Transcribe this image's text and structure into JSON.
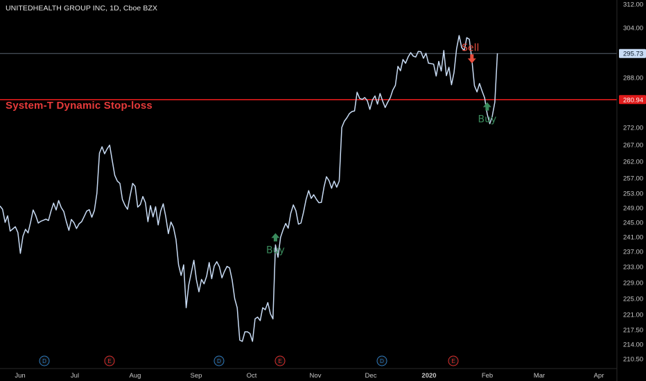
{
  "header": {
    "title": "UNITEDHEALTH GROUP INC, 1D, Cboe BZX"
  },
  "indicator": {
    "label": "System-T Dynamic Stop-loss",
    "stop_level": 280.94,
    "stop_label": "280.94",
    "stop_color": "#e01b1b"
  },
  "colors": {
    "background": "#000000",
    "price_line": "#c9dcf5",
    "last_price_badge": "#c9dcf5",
    "buy": "#3a8a5c",
    "sell": "#e84c3d",
    "dividend": "#2f7dc1",
    "earnings": "#e0302f"
  },
  "chart_data": {
    "type": "line",
    "title": "UNITEDHEALTH GROUP INC, 1D, Cboe BZX",
    "xlabel": "",
    "ylabel": "",
    "y_axis_ticks": [
      312.0,
      304.0,
      288.0,
      272.0,
      267.0,
      262.0,
      257.0,
      253.0,
      249.0,
      245.0,
      241.0,
      237.0,
      233.0,
      229.0,
      225.0,
      221.0,
      217.5,
      214.0,
      210.5
    ],
    "y_axis_tick_labels": [
      "312.00",
      "304.00",
      "288.00",
      "272.00",
      "267.00",
      "262.00",
      "257.00",
      "253.00",
      "249.00",
      "245.00",
      "241.00",
      "237.00",
      "233.00",
      "229.00",
      "225.00",
      "221.00",
      "217.50",
      "214.00",
      "210.50"
    ],
    "x_axis_ticks": [
      {
        "label": "Jun",
        "bold": false
      },
      {
        "label": "Jul",
        "bold": false
      },
      {
        "label": "Aug",
        "bold": false
      },
      {
        "label": "Sep",
        "bold": false
      },
      {
        "label": "Oct",
        "bold": false
      },
      {
        "label": "Nov",
        "bold": false
      },
      {
        "label": "Dec",
        "bold": false
      },
      {
        "label": "2020",
        "bold": true
      },
      {
        "label": "Feb",
        "bold": false
      },
      {
        "label": "Mar",
        "bold": false
      },
      {
        "label": "Apr",
        "bold": false
      }
    ],
    "last_price": 295.73,
    "last_price_label": "295.73",
    "series": [
      {
        "values": [
          249.5,
          248.6,
          245.0,
          246.8,
          242.6,
          243.2,
          243.8,
          242.2,
          236.5,
          241.2,
          243.1,
          242.1,
          245.1,
          248.4,
          246.9,
          244.8,
          245.3,
          245.6,
          245.9,
          245.5,
          248.1,
          250.3,
          248.4,
          251.0,
          249.1,
          248.0,
          245.2,
          242.8,
          245.8,
          244.9,
          243.3,
          244.6,
          245.2,
          246.6,
          248.1,
          248.5,
          246.4,
          248.3,
          253.0,
          264.5,
          266.4,
          264.3,
          265.8,
          266.9,
          262.3,
          257.8,
          256.2,
          255.6,
          251.3,
          249.7,
          248.6,
          252.3,
          255.6,
          254.8,
          249.2,
          249.9,
          252.1,
          250.4,
          245.2,
          249.6,
          246.5,
          249.3,
          244.3,
          248.1,
          250.1,
          246.5,
          241.9,
          245.1,
          243.7,
          240.3,
          233.5,
          230.8,
          233.5,
          222.7,
          228.4,
          231.5,
          234.7,
          229.7,
          226.7,
          229.8,
          228.7,
          230.6,
          234.1,
          230.0,
          233.2,
          234.3,
          233.0,
          230.2,
          231.8,
          233.1,
          232.7,
          229.7,
          225.0,
          222.7,
          215.0,
          214.7,
          217.0,
          217.0,
          216.6,
          214.7,
          220.0,
          220.4,
          219.6,
          222.7,
          222.2,
          224.0,
          221.2,
          220.0,
          238.8,
          235.5,
          240.9,
          243.0,
          244.7,
          243.4,
          247.5,
          249.8,
          248.2,
          244.5,
          244.8,
          247.8,
          251.3,
          253.7,
          251.6,
          252.6,
          251.4,
          250.4,
          250.5,
          254.6,
          257.4,
          256.3,
          254.3,
          256.2,
          254.6,
          256.2,
          272.0,
          274.0,
          275.1,
          276.5,
          277.1,
          277.3,
          283.3,
          281.3,
          281.0,
          281.6,
          280.6,
          277.8,
          280.8,
          282.1,
          279.5,
          282.9,
          280.5,
          278.4,
          280.1,
          281.5,
          284.0,
          285.5,
          291.6,
          290.2,
          293.8,
          292.6,
          294.6,
          296.0,
          294.9,
          294.6,
          296.4,
          296.3,
          294.2,
          295.8,
          292.6,
          292.5,
          292.3,
          288.5,
          293.2,
          290.1,
          296.7,
          288.6,
          291.3,
          285.7,
          289.6,
          297.2,
          301.5,
          297.6,
          296.7,
          300.8,
          300.3,
          293.7,
          285.4,
          283.4,
          286.1,
          283.7,
          281.5,
          276.3,
          273.2,
          275.6,
          280.1,
          295.8
        ]
      }
    ],
    "signals": [
      {
        "type": "buy",
        "label": "Buy",
        "index": 108
      },
      {
        "type": "sell",
        "label": "Sell",
        "index": 185
      },
      {
        "type": "buy",
        "label": "Buy",
        "index": 191
      }
    ],
    "events": [
      {
        "type": "dividend",
        "label": "D"
      },
      {
        "type": "earnings",
        "label": "E"
      },
      {
        "type": "dividend",
        "label": "D"
      },
      {
        "type": "earnings",
        "label": "E"
      },
      {
        "type": "dividend",
        "label": "D"
      },
      {
        "type": "earnings",
        "label": "E"
      }
    ],
    "grid": false,
    "legend": "none"
  }
}
